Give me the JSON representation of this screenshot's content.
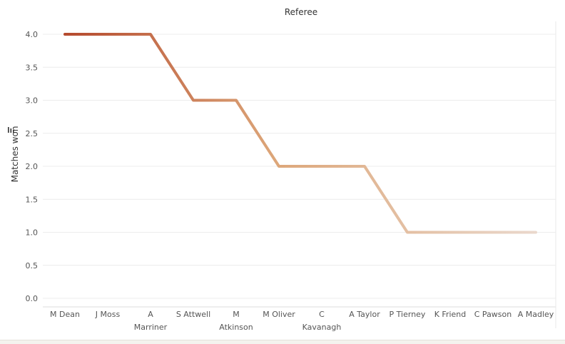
{
  "chart_data": {
    "type": "line",
    "title": "Referee",
    "xlabel": "",
    "ylabel": "Matches won",
    "ylim": [
      0,
      4.0
    ],
    "y_ticks": [
      "0.0",
      "0.5",
      "1.0",
      "1.5",
      "2.0",
      "2.5",
      "3.0",
      "3.5",
      "4.0"
    ],
    "grid": true,
    "sort_icon": "sort-descending-icon",
    "categories": [
      [
        "M Dean"
      ],
      [
        "J Moss"
      ],
      [
        "A",
        "Marriner"
      ],
      [
        "S Attwell"
      ],
      [
        "M",
        "Atkinson"
      ],
      [
        "M Oliver"
      ],
      [
        "C",
        "Kavanagh"
      ],
      [
        "A Taylor"
      ],
      [
        "P Tierney"
      ],
      [
        "K Friend"
      ],
      [
        "C Pawson"
      ],
      [
        "A Madley"
      ]
    ],
    "series": [
      {
        "values": [
          4,
          4,
          4,
          3,
          3,
          2,
          2,
          2,
          1,
          1,
          1,
          1
        ]
      }
    ],
    "color_scale": {
      "low": "#ead8cc",
      "mid": "#dda77a",
      "high": "#b54a2e"
    },
    "colors": {
      "text": "#555555",
      "title": "#333333",
      "grid": "#ececec"
    }
  }
}
